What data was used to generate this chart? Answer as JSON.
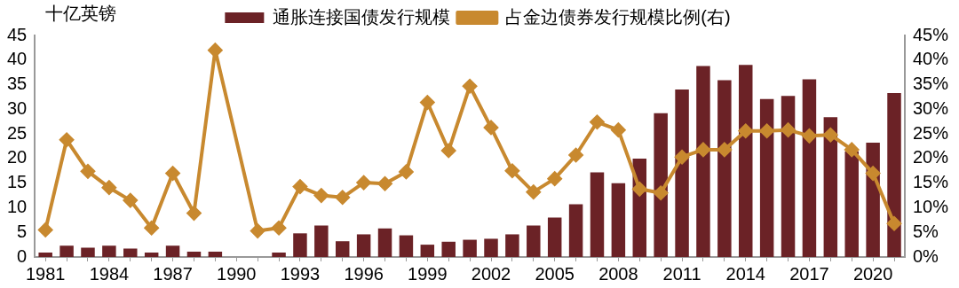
{
  "chart_data": {
    "type": "bar",
    "ylabel": "十亿英镑",
    "categories": [
      "1981",
      null,
      null,
      "1984",
      null,
      null,
      "1987",
      null,
      null,
      "1990",
      null,
      null,
      "1993",
      null,
      null,
      "1996",
      null,
      null,
      "1999",
      null,
      null,
      "2002",
      null,
      null,
      "2005",
      null,
      null,
      "2008",
      null,
      null,
      "2011",
      null,
      null,
      "2014",
      null,
      null,
      "2017",
      null,
      null,
      "2020",
      null
    ],
    "series": [
      {
        "name": "通胀连接国债发行规模",
        "type": "bar",
        "color": "#6b2226",
        "values": [
          0.9,
          2.3,
          1.9,
          2.3,
          1.7,
          0.9,
          2.3,
          1.1,
          1.1,
          null,
          null,
          0.9,
          4.8,
          6.4,
          3.2,
          4.6,
          5.8,
          4.4,
          2.5,
          3.1,
          3.5,
          3.7,
          4.6,
          6.4,
          8.0,
          10.7,
          17.2,
          15.0,
          20.0,
          29.2,
          34.0,
          38.8,
          35.9,
          39.0,
          32.1,
          32.7,
          36.1,
          28.4,
          21.4,
          23.2,
          33.3
        ]
      },
      {
        "name": "占金边债券发行规模比例(右)",
        "type": "line",
        "axis": "y2",
        "color": "#c8892f",
        "values": [
          5.5,
          23.8,
          17.4,
          14.1,
          11.5,
          5.9,
          17.0,
          8.9,
          42.0,
          null,
          5.3,
          5.9,
          14.3,
          12.5,
          12.1,
          15.1,
          14.9,
          17.3,
          31.4,
          21.6,
          34.7,
          26.3,
          17.5,
          13.2,
          15.9,
          20.7,
          27.4,
          25.8,
          13.8,
          13.0,
          20.3,
          21.8,
          21.8,
          25.6,
          25.6,
          25.8,
          24.6,
          24.8,
          21.8,
          17.0,
          6.8
        ]
      }
    ],
    "ylim": [
      0,
      45
    ],
    "yticks": [
      0,
      5,
      10,
      15,
      20,
      25,
      30,
      35,
      40,
      45
    ],
    "y2lim": [
      0,
      45
    ],
    "y2ticks": [
      {
        "value": 0,
        "label": "0%"
      },
      {
        "value": 5,
        "label": "5%"
      },
      {
        "value": 10,
        "label": "10%"
      },
      {
        "value": 15,
        "label": "15%"
      },
      {
        "value": 20,
        "label": "20%"
      },
      {
        "value": 25,
        "label": "25%"
      },
      {
        "value": 30,
        "label": "30%"
      },
      {
        "value": 35,
        "label": "35%"
      },
      {
        "value": 40,
        "label": "40%"
      },
      {
        "value": 45,
        "label": "45%"
      }
    ],
    "grid": false,
    "legend": "top",
    "marker": "diamond",
    "line_style": "solid"
  }
}
